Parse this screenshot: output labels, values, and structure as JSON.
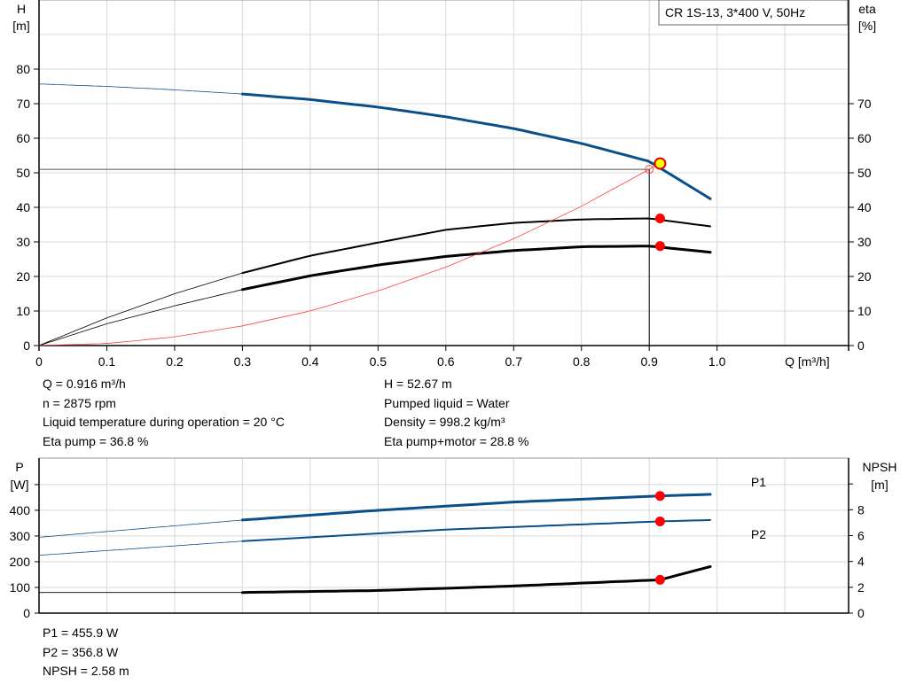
{
  "chart_data": [
    {
      "type": "line",
      "title": "CR 1S-13, 3*400 V, 50Hz",
      "xlabel": "Q [m³/h]",
      "xlim": [
        0,
        1.194
      ],
      "xticks": [
        0,
        0.1,
        0.2,
        0.3,
        0.4,
        0.5,
        0.6,
        0.7,
        0.8,
        0.9,
        1.0
      ],
      "xtick_labels": [
        "0",
        "0.1",
        "0.2",
        "0.3",
        "0.4",
        "0.5",
        "0.6",
        "0.7",
        "0.8",
        "0.9",
        "1.0"
      ],
      "ylabel_left": "H",
      "ylabel_left_unit": "[m]",
      "ylim": [
        0,
        100
      ],
      "yticks_left": [
        0,
        10,
        20,
        30,
        40,
        50,
        60,
        70,
        80
      ],
      "ylabel_right": "eta",
      "ylabel_right_unit": "[%]",
      "yticks_right": [
        0,
        10,
        20,
        30,
        40,
        50,
        60,
        70
      ],
      "grid": true,
      "series": [
        {
          "id": "H",
          "color": "#0b4f8a",
          "thin_until": 0.3,
          "x": [
            0,
            0.1,
            0.2,
            0.3,
            0.4,
            0.5,
            0.6,
            0.7,
            0.8,
            0.9,
            0.99
          ],
          "y": [
            75.7,
            75,
            74,
            72.8,
            71.2,
            69,
            66.2,
            62.8,
            58.5,
            53.3,
            42.5
          ]
        },
        {
          "id": "eta_pump",
          "color": "#000000",
          "thin_until": 0.3,
          "x": [
            0,
            0.1,
            0.2,
            0.3,
            0.4,
            0.5,
            0.6,
            0.7,
            0.8,
            0.9,
            0.99
          ],
          "y": [
            0,
            8,
            15,
            21,
            26,
            29.8,
            33.5,
            35.5,
            36.5,
            36.8,
            34.5
          ]
        },
        {
          "id": "eta_total",
          "color": "#000000",
          "thin_until": 0.3,
          "x": [
            0,
            0.1,
            0.2,
            0.3,
            0.4,
            0.5,
            0.6,
            0.7,
            0.8,
            0.9,
            0.99
          ],
          "y": [
            0,
            6.3,
            11.5,
            16.2,
            20.2,
            23.3,
            25.8,
            27.5,
            28.6,
            28.8,
            27
          ]
        },
        {
          "id": "system",
          "color": "#ff4040",
          "x": [
            0,
            0.1,
            0.2,
            0.3,
            0.4,
            0.5,
            0.6,
            0.7,
            0.8,
            0.9
          ],
          "y": [
            0,
            0.6,
            2.5,
            5.7,
            10,
            15.8,
            22.7,
            30.9,
            40.3,
            51
          ]
        }
      ],
      "duty_point": {
        "Q": 0.916,
        "H": 52.67,
        "eta_pump": 36.8,
        "eta_total": 28.8
      },
      "reference": {
        "Q": 0.9,
        "H": 51
      }
    },
    {
      "type": "line",
      "xlim": [
        0,
        1.194
      ],
      "ylabel_left": "P",
      "ylabel_left_unit": "[W]",
      "ylim": [
        0,
        603
      ],
      "yticks_left": [
        0,
        100,
        200,
        300,
        400
      ],
      "ylabel_right": "NPSH",
      "ylabel_right_unit": "[m]",
      "ylim_right": [
        0,
        12
      ],
      "yticks_right": [
        0,
        2,
        4,
        6,
        8
      ],
      "grid": true,
      "series": [
        {
          "name": "P1",
          "color": "#0b4f8a",
          "axis": "left",
          "thin_until": 0.3,
          "x": [
            0,
            0.3,
            0.5,
            0.7,
            0.916,
            0.99
          ],
          "y": [
            295,
            362,
            400,
            432,
            455.9,
            462
          ]
        },
        {
          "name": "P2",
          "color": "#0b4f8a",
          "axis": "left",
          "thin_until": 0.3,
          "x": [
            0,
            0.3,
            0.6,
            0.916,
            0.99
          ],
          "y": [
            225,
            280,
            325,
            356.8,
            362
          ]
        },
        {
          "id": "NPSH",
          "color": "#000000",
          "axis": "right",
          "thin_until": 0.3,
          "x": [
            0,
            0.3,
            0.5,
            0.7,
            0.916,
            0.99
          ],
          "y": [
            1.6,
            1.6,
            1.75,
            2.1,
            2.58,
            3.6
          ]
        }
      ],
      "duty_point": {
        "Q": 0.916,
        "P1": 455.9,
        "P2": 356.8,
        "NPSH": 2.58
      }
    }
  ],
  "info_top_left": [
    "Q = 0.916 m³/h",
    "n = 2875 rpm",
    "Liquid temperature during operation = 20 °C",
    "Eta pump = 36.8 %"
  ],
  "info_top_right": [
    "H = 52.67 m",
    "Pumped liquid = Water",
    "Density = 998.2 kg/m³",
    "Eta pump+motor = 28.8 %"
  ],
  "info_bottom": [
    "P1 = 455.9 W",
    "P2 = 356.8 W",
    "NPSH = 2.58 m"
  ]
}
